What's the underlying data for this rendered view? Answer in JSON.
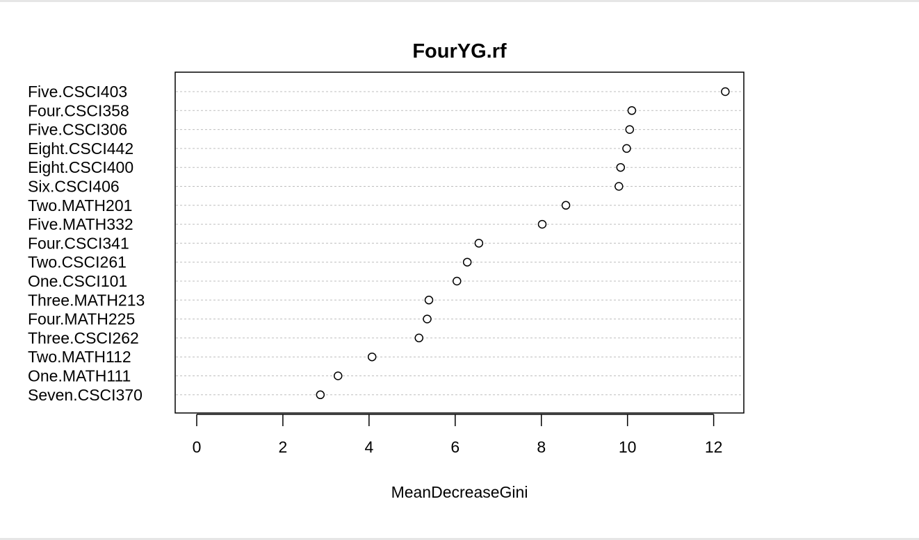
{
  "chart_data": {
    "type": "scatter",
    "title": "FourYG.rf",
    "xlabel": "MeanDecreaseGini",
    "ylabel": "",
    "xlim": [
      -0.5,
      12.7
    ],
    "xticks": [
      0,
      2,
      4,
      6,
      8,
      10,
      12
    ],
    "grid": "dotted horizontal lines per category",
    "legend": "none",
    "categories": [
      "Five.CSCI403",
      "Four.CSCI358",
      "Five.CSCI306",
      "Eight.CSCI442",
      "Eight.CSCI400",
      "Six.CSCI406",
      "Two.MATH201",
      "Five.MATH332",
      "Four.CSCI341",
      "Two.CSCI261",
      "One.CSCI101",
      "Three.MATH213",
      "Four.MATH225",
      "Three.CSCI262",
      "Two.MATH112",
      "One.MATH111",
      "Seven.CSCI370"
    ],
    "values": [
      12.27,
      10.1,
      10.05,
      9.98,
      9.84,
      9.8,
      8.57,
      8.02,
      6.55,
      6.28,
      6.04,
      5.39,
      5.35,
      5.16,
      4.07,
      3.28,
      2.87
    ],
    "colors": {
      "point_stroke": "#000000",
      "point_fill": "#ffffff",
      "grid": "#bdbdbd",
      "axis": "#000000"
    }
  }
}
